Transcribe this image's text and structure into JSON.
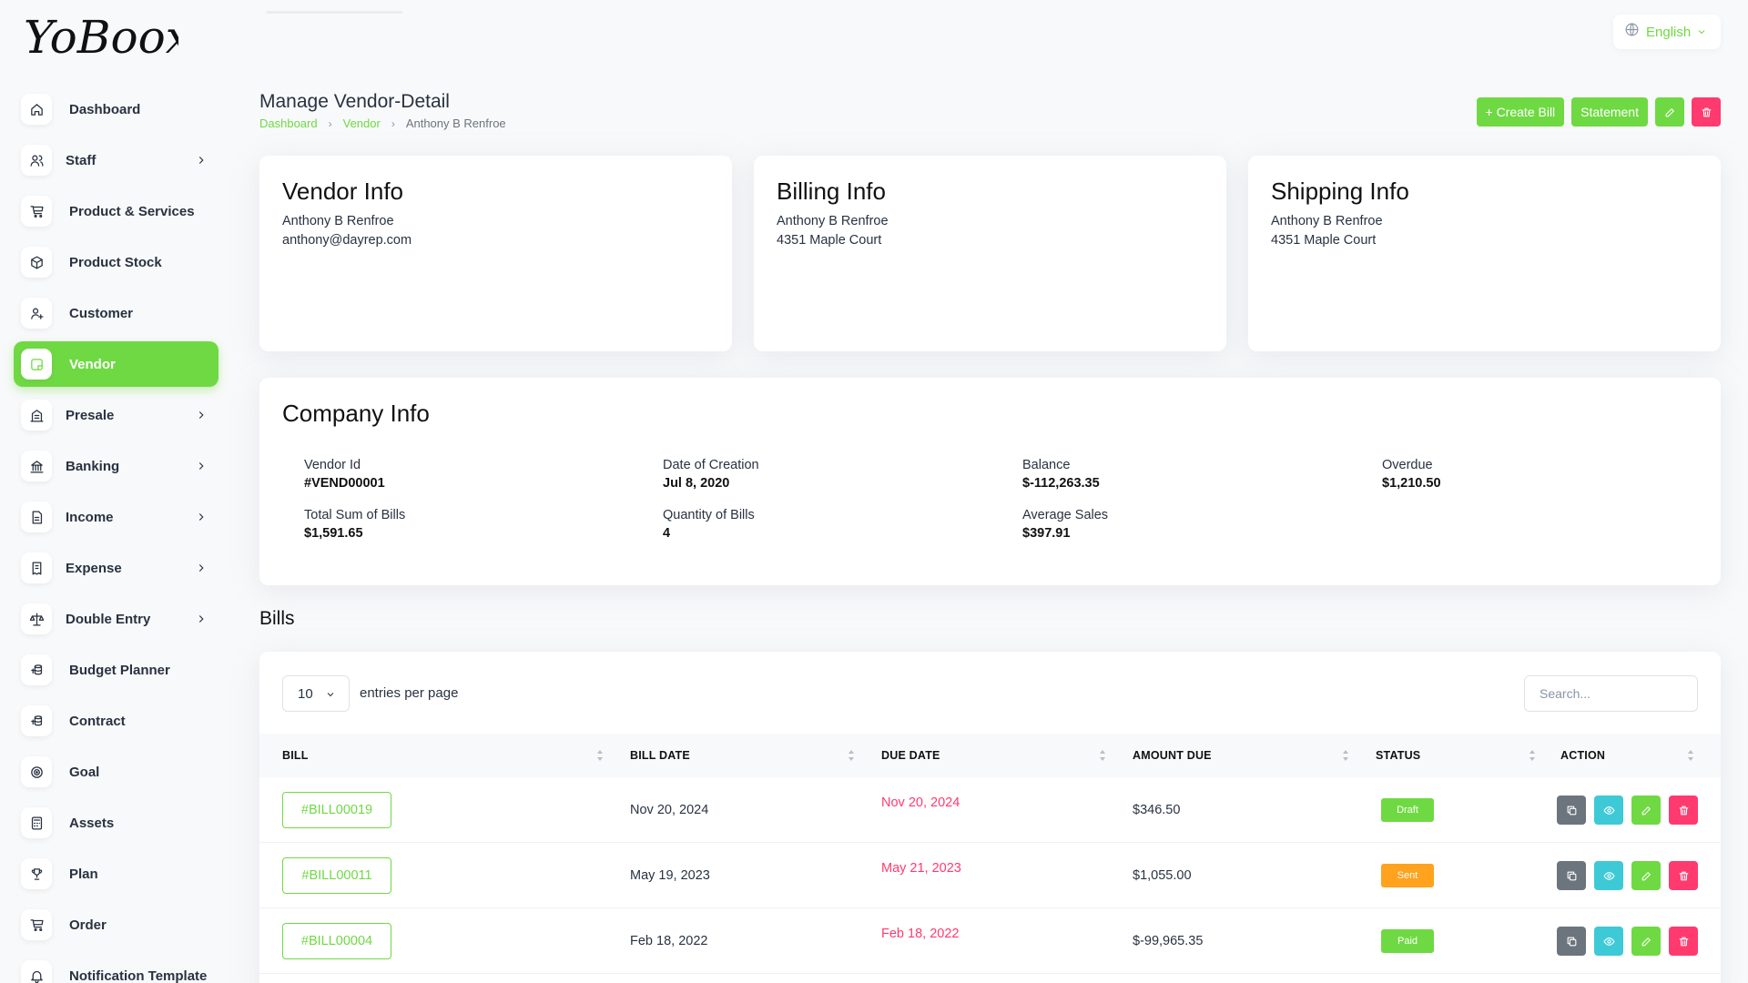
{
  "app": {
    "logo_text": "YoBoox"
  },
  "sidebar": {
    "items": [
      {
        "label": "Dashboard",
        "icon": "home-icon",
        "submenu": false,
        "active": false
      },
      {
        "label": "Staff",
        "icon": "users-icon",
        "submenu": true,
        "active": false
      },
      {
        "label": "Product & Services",
        "icon": "cart-icon",
        "submenu": false,
        "active": false
      },
      {
        "label": "Product Stock",
        "icon": "box-icon",
        "submenu": false,
        "active": false
      },
      {
        "label": "Customer",
        "icon": "user-plus-icon",
        "submenu": false,
        "active": false
      },
      {
        "label": "Vendor",
        "icon": "note-icon",
        "submenu": false,
        "active": true
      },
      {
        "label": "Presale",
        "icon": "building-icon",
        "submenu": true,
        "active": false
      },
      {
        "label": "Banking",
        "icon": "bank-icon",
        "submenu": true,
        "active": false
      },
      {
        "label": "Income",
        "icon": "file-invoice-icon",
        "submenu": true,
        "active": false
      },
      {
        "label": "Expense",
        "icon": "receipt-icon",
        "submenu": true,
        "active": false
      },
      {
        "label": "Double Entry",
        "icon": "scale-icon",
        "submenu": true,
        "active": false
      },
      {
        "label": "Budget Planner",
        "icon": "coins-icon",
        "submenu": false,
        "active": false
      },
      {
        "label": "Contract",
        "icon": "coins-icon",
        "submenu": false,
        "active": false
      },
      {
        "label": "Goal",
        "icon": "target-icon",
        "submenu": false,
        "active": false
      },
      {
        "label": "Assets",
        "icon": "calculator-icon",
        "submenu": false,
        "active": false
      },
      {
        "label": "Plan",
        "icon": "trophy-icon",
        "submenu": false,
        "active": false
      },
      {
        "label": "Order",
        "icon": "cart-icon",
        "submenu": false,
        "active": false
      },
      {
        "label": "Notification Template",
        "icon": "bell-icon",
        "submenu": false,
        "active": false
      }
    ]
  },
  "topbar": {
    "language": "English"
  },
  "header": {
    "title": "Manage Vendor-Detail",
    "breadcrumb": [
      "Dashboard",
      "Vendor",
      "Anthony B Renfroe"
    ],
    "buttons": {
      "create_bill": "+ Create Bill",
      "statement": "Statement"
    }
  },
  "vendor_info": {
    "title": "Vendor Info",
    "name": "Anthony B Renfroe",
    "email": "anthony@dayrep.com"
  },
  "billing_info": {
    "title": "Billing Info",
    "name": "Anthony B Renfroe",
    "address": "4351 Maple Court"
  },
  "shipping_info": {
    "title": "Shipping Info",
    "name": "Anthony B Renfroe",
    "address": "4351 Maple Court"
  },
  "company_info": {
    "title": "Company Info",
    "fields": [
      {
        "label": "Vendor Id",
        "value": "#VEND00001"
      },
      {
        "label": "Date of Creation",
        "value": "Jul 8, 2020"
      },
      {
        "label": "Balance",
        "value": "$-112,263.35"
      },
      {
        "label": "Overdue",
        "value": "$1,210.50"
      },
      {
        "label": "Total Sum of Bills",
        "value": "$1,591.65"
      },
      {
        "label": "Quantity of Bills",
        "value": "4"
      },
      {
        "label": "Average Sales",
        "value": "$397.91"
      }
    ]
  },
  "bills": {
    "title": "Bills",
    "entries_value": "10",
    "entries_label": "entries per page",
    "search_placeholder": "Search...",
    "columns": [
      "BILL",
      "BILL DATE",
      "DUE DATE",
      "AMOUNT DUE",
      "STATUS",
      "ACTION"
    ],
    "rows": [
      {
        "bill": "#BILL00019",
        "bill_date": "Nov 20, 2024",
        "due_date": "Nov 20, 2024",
        "amount": "$346.50",
        "status": "Draft",
        "status_color": "#6fd943"
      },
      {
        "bill": "#BILL00011",
        "bill_date": "May 19, 2023",
        "due_date": "May 21, 2023",
        "amount": "$1,055.00",
        "status": "Sent",
        "status_color": "#ffa21d"
      },
      {
        "bill": "#BILL00004",
        "bill_date": "Feb 18, 2022",
        "due_date": "Feb 18, 2022",
        "amount": "$-99,965.35",
        "status": "Paid",
        "status_color": "#6fd943"
      }
    ]
  },
  "colors": {
    "accent": "#6fd943",
    "danger": "#ff3a6e",
    "info": "#3ec9d6",
    "secondary": "#6c757d",
    "warning": "#ffa21d"
  }
}
